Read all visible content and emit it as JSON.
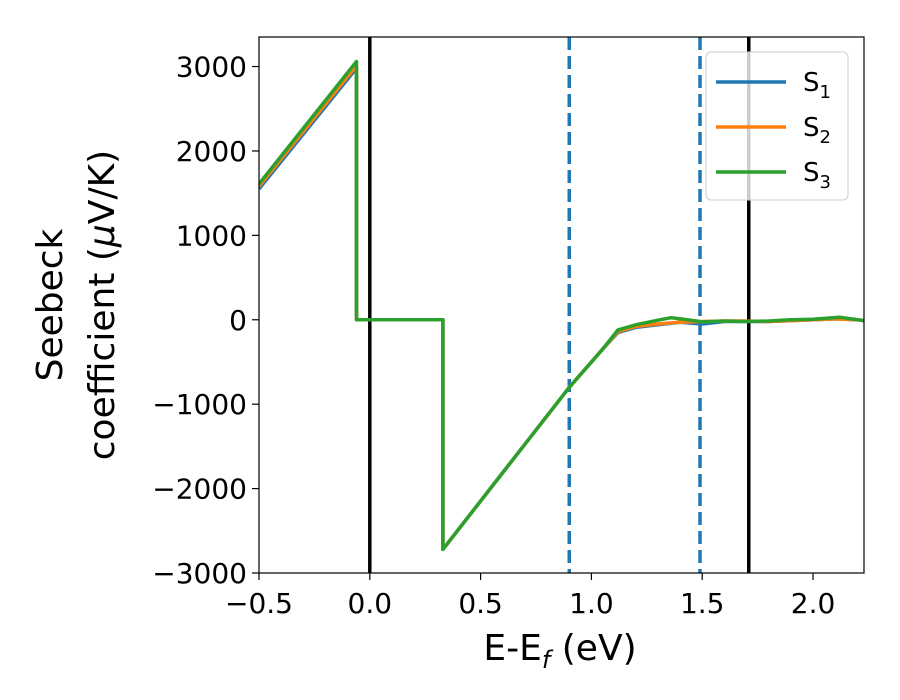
{
  "chart_data": {
    "type": "line",
    "xlabel": "E-E",
    "xlabel_sub": "f",
    "xlabel_unit": " (eV)",
    "ylabel_line1": "Seebeck",
    "ylabel_line2_prefix": "coefficient  (",
    "ylabel_mu": "μ",
    "ylabel_line2_suffix": "V/K)",
    "xlim": [
      -0.5,
      2.23
    ],
    "ylim": [
      -3000,
      3350
    ],
    "xticks": [
      -0.5,
      0.0,
      0.5,
      1.0,
      1.5,
      2.0
    ],
    "xtick_labels": [
      "−0.5",
      "0.0",
      "0.5",
      "1.0",
      "1.5",
      "2.0"
    ],
    "yticks": [
      -3000,
      -2000,
      -1000,
      0,
      1000,
      2000,
      3000
    ],
    "ytick_labels": [
      "−3000",
      "−2000",
      "−1000",
      "0",
      "1000",
      "2000",
      "3000"
    ],
    "vlines": [
      {
        "x": 0.0,
        "style": "solid",
        "color": "#000000"
      },
      {
        "x": 0.9,
        "style": "dashed",
        "color": "#1f77b4"
      },
      {
        "x": 1.49,
        "style": "dashed",
        "color": "#1f77b4"
      },
      {
        "x": 1.71,
        "style": "solid",
        "color": "#000000"
      }
    ],
    "legend_position": "top-right",
    "series": [
      {
        "name": "S",
        "sub": "1",
        "color": "#1f77b4",
        "x": [
          -0.5,
          -0.06,
          -0.06,
          0.33,
          0.33,
          0.9,
          1.05,
          1.12,
          1.2,
          1.3,
          1.4,
          1.5,
          1.6,
          1.7,
          1.8,
          1.9,
          2.0,
          2.1,
          2.2,
          2.23
        ],
        "y": [
          1550,
          2980,
          0,
          0,
          -2720,
          -800,
          -350,
          -150,
          -90,
          -60,
          -30,
          -50,
          -20,
          -20,
          -20,
          -10,
          0,
          10,
          0,
          -10
        ]
      },
      {
        "name": "S",
        "sub": "2",
        "color": "#ff7f0e",
        "x": [
          -0.5,
          -0.06,
          -0.06,
          0.33,
          0.33,
          0.9,
          1.05,
          1.12,
          1.2,
          1.3,
          1.4,
          1.5,
          1.6,
          1.7,
          1.8,
          1.9,
          2.0,
          2.1,
          2.2,
          2.23
        ],
        "y": [
          1580,
          3010,
          0,
          0,
          -2720,
          -800,
          -350,
          -140,
          -80,
          -50,
          -30,
          -20,
          -15,
          -15,
          -20,
          -10,
          0,
          10,
          0,
          -10
        ]
      },
      {
        "name": "S",
        "sub": "3",
        "color": "#2ca02c",
        "x": [
          -0.5,
          -0.06,
          -0.06,
          0.33,
          0.33,
          0.9,
          1.05,
          1.12,
          1.2,
          1.3,
          1.36,
          1.42,
          1.5,
          1.6,
          1.7,
          1.8,
          1.9,
          2.0,
          2.12,
          2.23
        ],
        "y": [
          1610,
          3060,
          0,
          0,
          -2720,
          -800,
          -350,
          -120,
          -60,
          -5,
          25,
          5,
          -25,
          -15,
          -20,
          -15,
          0,
          5,
          30,
          -10
        ]
      }
    ]
  }
}
